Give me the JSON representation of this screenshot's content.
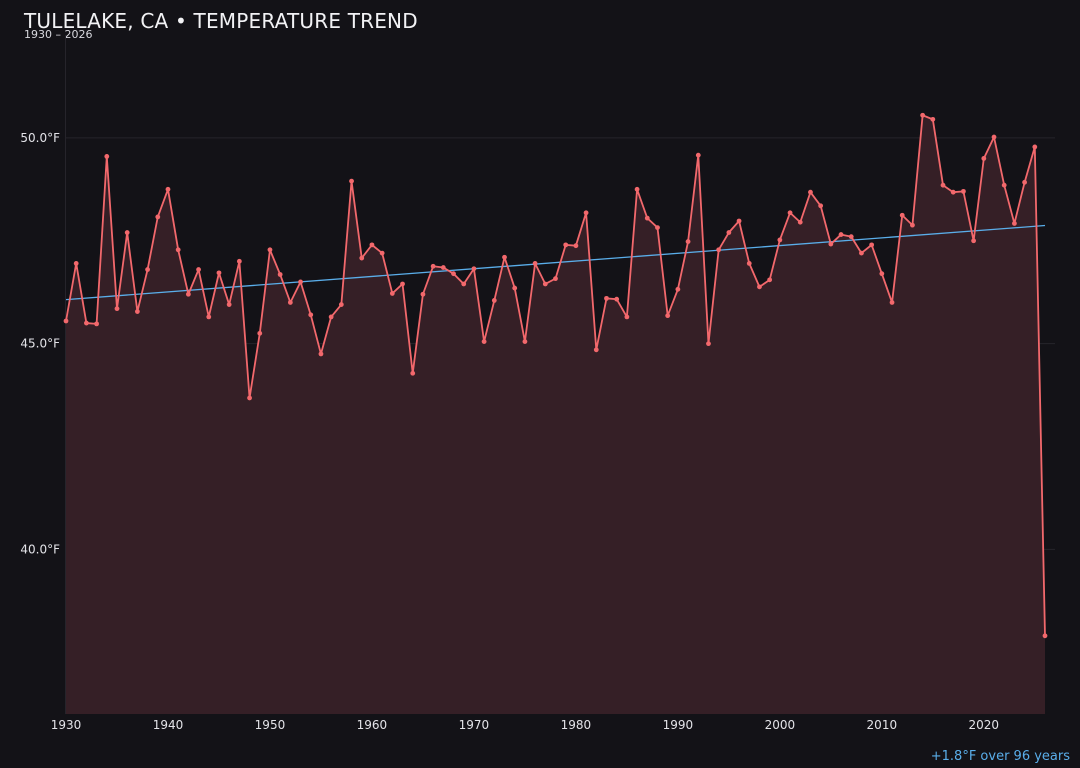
{
  "header": {
    "title": "TULELAKE, CA • TEMPERATURE TREND",
    "subtitle": "1930 – 2026"
  },
  "footnote": "+1.8°F over 96 years",
  "colors": {
    "background": "#131217",
    "series_line": "#f2686c",
    "series_fill": "#351f26",
    "trend_line": "#5aaeea",
    "grid": "#26242b"
  },
  "chart_data": {
    "type": "line",
    "title": "TULELAKE, CA • TEMPERATURE TREND",
    "subtitle": "1930 – 2026",
    "xlabel": "",
    "ylabel": "",
    "xlim": [
      1930,
      2026
    ],
    "ylim": [
      36.0,
      52.5
    ],
    "grid": true,
    "x_ticks": [
      1930,
      1940,
      1950,
      1960,
      1970,
      1980,
      1990,
      2000,
      2010,
      2020
    ],
    "x_tick_labels": [
      "1930",
      "1940",
      "1950",
      "1960",
      "1970",
      "1980",
      "1990",
      "2000",
      "2010",
      "2020"
    ],
    "y_ticks": [
      40.0,
      45.0,
      50.0
    ],
    "y_tick_labels": [
      "40.0°F",
      "45.0°F",
      "50.0°F"
    ],
    "series": [
      {
        "x": [
          1930,
          1931,
          1932,
          1933,
          1934,
          1935,
          1936,
          1937,
          1938,
          1939,
          1940,
          1941,
          1942,
          1943,
          1944,
          1945,
          1946,
          1947,
          1948,
          1949,
          1950,
          1951,
          1952,
          1953,
          1954,
          1955,
          1956,
          1957,
          1958,
          1959,
          1960,
          1961,
          1962,
          1963,
          1964,
          1965,
          1966,
          1967,
          1968,
          1969,
          1970,
          1971,
          1972,
          1973,
          1974,
          1975,
          1976,
          1977,
          1978,
          1979,
          1980,
          1981,
          1982,
          1983,
          1984,
          1985,
          1986,
          1987,
          1988,
          1989,
          1990,
          1991,
          1992,
          1993,
          1994,
          1995,
          1996,
          1997,
          1998,
          1999,
          2000,
          2001,
          2002,
          2003,
          2004,
          2005,
          2006,
          2007,
          2008,
          2009,
          2010,
          2011,
          2012,
          2013,
          2014,
          2015,
          2016,
          2017,
          2018,
          2019,
          2020,
          2021,
          2022,
          2023,
          2024,
          2025,
          2026
        ],
        "values": [
          45.55,
          46.95,
          45.5,
          45.48,
          49.55,
          45.85,
          47.7,
          45.78,
          46.8,
          48.08,
          48.75,
          47.28,
          46.2,
          46.8,
          45.65,
          46.72,
          45.95,
          47.0,
          43.68,
          45.25,
          47.28,
          46.68,
          46.0,
          46.5,
          45.7,
          44.75,
          45.65,
          45.95,
          48.95,
          47.08,
          47.4,
          47.2,
          46.22,
          46.45,
          44.28,
          46.2,
          46.88,
          46.85,
          46.7,
          46.45,
          46.82,
          45.05,
          46.05,
          47.1,
          46.35,
          45.05,
          46.95,
          46.45,
          46.58,
          47.4,
          47.38,
          48.18,
          44.85,
          46.1,
          46.08,
          45.65,
          48.75,
          48.05,
          47.82,
          45.68,
          46.32,
          47.48,
          49.58,
          45.0,
          47.28,
          47.7,
          47.98,
          46.95,
          46.38,
          46.55,
          47.52,
          48.18,
          47.95,
          48.68,
          48.35,
          47.42,
          47.65,
          47.6,
          47.2,
          47.4,
          46.7,
          46.0,
          48.12,
          47.88,
          50.55,
          50.45,
          48.85,
          48.68,
          48.7,
          47.5,
          49.5,
          50.02,
          48.85,
          47.92,
          48.92,
          49.78,
          37.9
        ]
      }
    ],
    "trend": {
      "x": [
        1930,
        2026
      ],
      "y": [
        46.07,
        47.87
      ]
    }
  }
}
